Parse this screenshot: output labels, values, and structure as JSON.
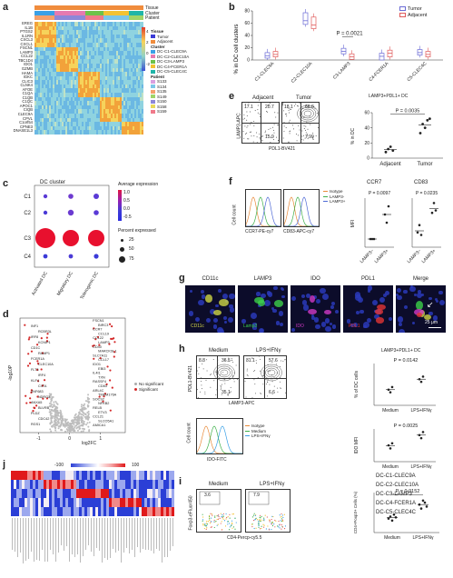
{
  "panel_labels": {
    "a": "a",
    "b": "b",
    "c": "c",
    "d": "d",
    "e": "e",
    "f": "f",
    "g": "g",
    "h": "h",
    "i": "i",
    "j": "j"
  },
  "panel_a": {
    "track_labels": [
      "Tissue",
      "Cluster",
      "Patient"
    ],
    "genes": [
      "EREG",
      "IL1B",
      "PTGS2",
      "IL1RN",
      "CXCL3",
      "CXCL1",
      "FSCN1",
      "LAMP3",
      "CCL22",
      "TBC1D4",
      "IDO1",
      "GZMB",
      "HAMA",
      "IGKC",
      "CLIC3",
      "CLNK4",
      "AFOE",
      "C1QA",
      "C1QB",
      "C1QC",
      "APOC1",
      "CIQB",
      "CLEC9A",
      "CPVL",
      "C1orf54",
      "CPNE3",
      "DNASE1L3"
    ],
    "legend_tissue_title": "Tissue",
    "legend_tissue": [
      {
        "label": "Tumor",
        "color": "#3a3ad6"
      },
      {
        "label": "Adjacent",
        "color": "#f08c3c"
      }
    ],
    "legend_cluster_title": "Cluster",
    "legend_cluster": [
      {
        "label": "DC-C1-CLEC9A",
        "color": "#3aa0e6"
      },
      {
        "label": "DC-C2-CLEC10A",
        "color": "#e67ab0"
      },
      {
        "label": "DC-C3-LAMP3",
        "color": "#6cc24a"
      },
      {
        "label": "DC-C4-FCER1A",
        "color": "#f2c232"
      },
      {
        "label": "DC-C5-CLEC4C",
        "color": "#1fb5a8"
      }
    ],
    "legend_patient_title": "Patient",
    "legend_patient": [
      {
        "label": "S133",
        "color": "#d99fe0"
      },
      {
        "label": "S134",
        "color": "#7cc6e8"
      },
      {
        "label": "S135",
        "color": "#f5a06b"
      },
      {
        "label": "S149",
        "color": "#a0d468"
      },
      {
        "label": "S150",
        "color": "#8d87d8"
      },
      {
        "label": "S158",
        "color": "#e8d85a"
      },
      {
        "label": "S159",
        "color": "#f07a8a"
      }
    ],
    "scale_labels": [
      "4",
      "2",
      "0",
      "-2",
      "-4"
    ]
  },
  "panel_b": {
    "ylabel": "% in DC cell clusters",
    "legend": [
      {
        "label": "Tumor",
        "color": "#6b6bd6"
      },
      {
        "label": "Adjacent",
        "color": "#e05a5a"
      }
    ],
    "pvalue": "P = 0.0021",
    "categories": [
      "C1-CLEC9A",
      "C2-CLEC10A",
      "C3-LAMP3",
      "C4-FCER1A",
      "C5-CLEC4C"
    ],
    "yticks": [
      "0",
      "20",
      "40",
      "60",
      "80"
    ]
  },
  "panel_c": {
    "title": "DC cluster",
    "rows": [
      "C1",
      "C2",
      "C3",
      "C4"
    ],
    "cols": [
      "Activated DC",
      "Migratory DC",
      "Tolerogenic DC"
    ],
    "avg_title": "Average expression",
    "avg_ticks": [
      "1.0",
      "0.5",
      "0.0",
      "-0.5"
    ],
    "pct_title": "Percent expressed",
    "pct_ticks": [
      "25",
      "50",
      "75"
    ]
  },
  "panel_d": {
    "xlabel": "log2FC",
    "ylabel": "-log10P",
    "legend": [
      "No significant",
      "Significant"
    ],
    "xticks": [
      "-1",
      "0",
      "1"
    ],
    "genes_left": [
      "INF1",
      "RCBR3L",
      "IRF8",
      "KCNIP1",
      "CD1C",
      "RAMP1",
      "FCER1A",
      "CLEC10A",
      "FLT3",
      "IRF4",
      "KLF4",
      "CIITA",
      "ZNF683",
      "NDRG2",
      "ANXA5",
      "BLVRB",
      "PLDZ",
      "CDC42",
      "RGS1"
    ],
    "genes_right": [
      "FSCN1",
      "BIRC3",
      "CCR7",
      "CCL19",
      "CCL22",
      "LAMP3",
      "CD40",
      "MARCKSL1",
      "SLC7A11",
      "CCL17",
      "IDO1",
      "EBI3",
      "IL4I1",
      "TXN",
      "RASSF4",
      "CD83",
      "ARL4C",
      "TMEM176A",
      "SOCS2",
      "NFKB2",
      "RELB",
      "ETV3",
      "CCL21",
      "SLCO5A1",
      "AMICA1"
    ]
  },
  "panel_e": {
    "sub_left": "Adjacent",
    "sub_right": "Tumor",
    "ylabel": "LAMP3-APC",
    "xlabel": "PDL1-BV421",
    "adj_q": [
      "17.1",
      "20.7",
      "",
      "15.9"
    ],
    "tum_q": [
      "18.1",
      "66.6",
      "",
      "7.99"
    ],
    "right_title": "LAMP3+PDL1+ DC",
    "pvalue": "P = 0.0035",
    "right_ylabel": "% in DC",
    "xcats": [
      "Adjacent",
      "Tumor"
    ],
    "yticks": [
      "0",
      "20",
      "40",
      "60"
    ]
  },
  "panel_f": {
    "ylabel": "Cell count",
    "xlabel1": "CCR7-PE-cy7",
    "xlabel2": "CD83-APC-cy7",
    "legend": [
      {
        "label": "Isotype",
        "color": "#e88a3a"
      },
      {
        "label": "LAMP3-",
        "color": "#3fb04a"
      },
      {
        "label": "LAMP3+",
        "color": "#4f6ad6"
      }
    ],
    "t1": "CCR7",
    "p1": "P = 0.0097",
    "t2": "CD83",
    "p2": "P = 0.0235",
    "ylabel_right": "MFI",
    "xcats": [
      "LAMP3−",
      "LAMP3+"
    ]
  },
  "panel_g": {
    "titles": [
      "CD11c",
      "LAMP3",
      "IDO",
      "PDL1",
      "Merge"
    ],
    "merge_labels": {
      "cd11c": "CD11c",
      "lamp3": "Lamp3",
      "ido": "IDO",
      "pdl1": "PDL1"
    },
    "scale": "25 μm"
  },
  "panel_h": {
    "sub1": "Medium",
    "sub2": "LPS+IFNγ",
    "ylabel": "PDL1-BV421",
    "xlabel": "LAMP3-APC",
    "q1": [
      "8.8",
      "36.5",
      "",
      "35.1"
    ],
    "q2": [
      "31.1",
      "57.6",
      "",
      "6.6"
    ],
    "right_title": "LAMP3+PDL1+ DC",
    "p1": "P = 0.0142",
    "ylabel1": "% of DC cells",
    "xcats": [
      "Medium",
      "LPS+IFNγ"
    ],
    "hist_legend": [
      {
        "label": "Isotype",
        "color": "#e88a3a"
      },
      {
        "label": "Medium",
        "color": "#3fb04a"
      },
      {
        "label": "LPS+IFNγ",
        "color": "#3aa0e6"
      }
    ],
    "hist_ylabel": "Cell count",
    "hist_xlabel": "IDO-FITC",
    "p2": "P = 0.0025",
    "ylabel2": "IDO MFI"
  },
  "panel_i": {
    "sub1": "Medium",
    "sub2": "LPS+IFNγ",
    "v1": "3.6",
    "v2": "7.9",
    "ylabel": "Foxp3-eFluor450",
    "xlabel": "CD4-Percp-cy5.5",
    "pvalue": "P = 0.0152",
    "right_ylabel": "CD4+Foxp3+ Cells (%)",
    "xcats": [
      "Medium",
      "LPS+IFNγ"
    ]
  },
  "panel_j": {
    "scale_ticks": [
      "-100",
      "-50",
      "0",
      "50",
      "100"
    ],
    "rows": [
      "DC-C1-CLEC9A",
      "DC-C2-CLEC10A",
      "DC-C3-LAMP3",
      "DC-C4-FCER1A",
      "DC-C5-CLEC4C"
    ]
  },
  "chart_data": [
    {
      "type": "box",
      "panel": "b",
      "categories": [
        "C1-CLEC9A",
        "C2-CLEC10A",
        "C3-LAMP3",
        "C4-FCER1A",
        "C5-CLEC4C"
      ],
      "series": [
        {
          "name": "Tumor",
          "medians": [
            7,
            64,
            14,
            6,
            12
          ]
        },
        {
          "name": "Adjacent",
          "medians": [
            9,
            57,
            5,
            11,
            9
          ]
        }
      ],
      "ylim": [
        0,
        80
      ]
    },
    {
      "type": "scatter",
      "panel": "e",
      "categories": [
        "Adjacent",
        "Tumor"
      ],
      "values": [
        [
          8,
          12,
          15,
          10
        ],
        [
          33,
          45,
          40,
          50,
          52
        ]
      ],
      "ylim": [
        0,
        60
      ]
    },
    {
      "type": "scatter",
      "panel": "f",
      "series": [
        {
          "name": "CCR7",
          "values": [
            [
              1,
              1,
              1
            ],
            [
              4,
              3,
              5
            ]
          ]
        },
        {
          "name": "CD83",
          "values": [
            [
              1.2,
              1.8,
              1.0
            ],
            [
              2.8,
              3.6,
              3.0
            ]
          ]
        }
      ]
    },
    {
      "type": "scatter",
      "panel": "h",
      "series": [
        {
          "name": "% of DC cells",
          "values": [
            [
              30,
              25,
              35
            ],
            [
              50,
              45,
              55
            ]
          ]
        },
        {
          "name": "IDO MFI",
          "values": [
            [
              80,
              65,
              90
            ],
            [
              130,
              115,
              145
            ]
          ]
        }
      ]
    },
    {
      "type": "scatter",
      "panel": "i",
      "categories": [
        "Medium",
        "LPS+IFNγ"
      ],
      "values": [
        [
          3.5,
          4,
          3,
          4.5,
          3.8
        ],
        [
          7,
          6,
          8,
          7.5,
          6.5
        ]
      ]
    }
  ]
}
